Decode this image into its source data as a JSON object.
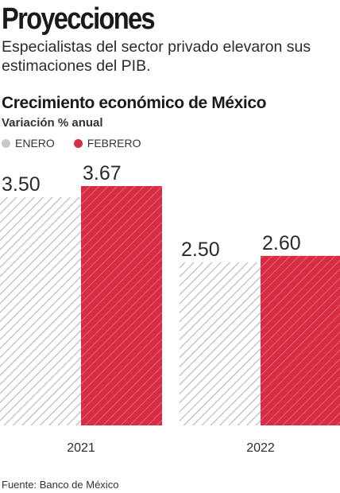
{
  "headline": "Proyecciones",
  "subhead": "Especialistas del sector privado elevaron sus estimaciones del PIB.",
  "source": "Fuente: Banco de México",
  "chart_data": {
    "type": "bar",
    "title": "Crecimiento económico de México",
    "subtitle": "Variación % anual",
    "categories": [
      "2021",
      "2022"
    ],
    "series": [
      {
        "name": "ENERO",
        "values": [
          3.5,
          2.5
        ],
        "labels": [
          "3.50",
          "2.50"
        ],
        "color": "#b0b0b0",
        "pattern": "hatched"
      },
      {
        "name": "FEBRERO",
        "values": [
          3.67,
          2.6
        ],
        "labels": [
          "3.67",
          "2.60"
        ],
        "color": "#d62d44",
        "pattern": "hatched"
      }
    ],
    "ylim": [
      0,
      3.67
    ],
    "grid": false,
    "legend_position": "top-left"
  }
}
